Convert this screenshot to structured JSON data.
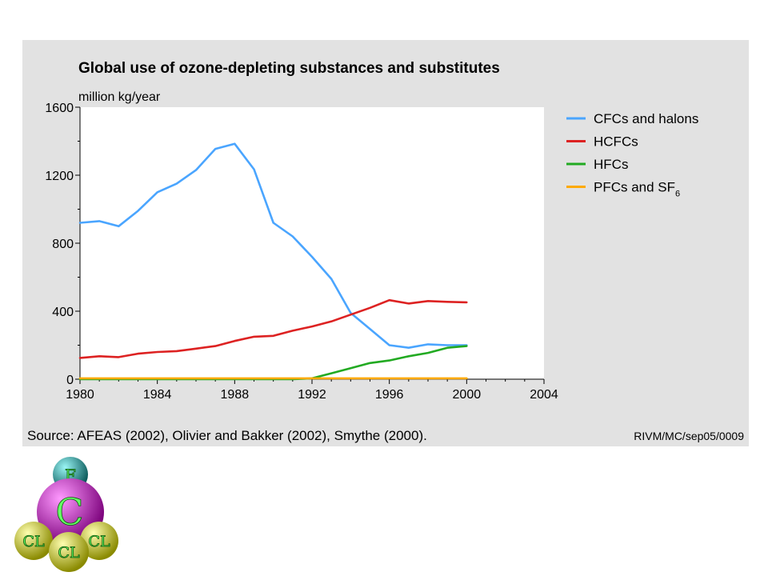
{
  "chart_data": {
    "type": "line",
    "title": "Global use of ozone-depleting substances and substitutes",
    "ylabel": "million kg/year",
    "xlabel": "",
    "xlim": [
      1980,
      2004
    ],
    "ylim": [
      0,
      1600
    ],
    "x_ticks": [
      1980,
      1984,
      1988,
      1992,
      1996,
      2000,
      2004
    ],
    "y_ticks": [
      0,
      400,
      800,
      1200,
      1600
    ],
    "legend_position": "right",
    "grid": false,
    "series": [
      {
        "name": "CFCs and halons",
        "color": "#4aa5ff",
        "x": [
          1980,
          1981,
          1982,
          1983,
          1984,
          1985,
          1986,
          1987,
          1988,
          1989,
          1990,
          1991,
          1992,
          1993,
          1994,
          1995,
          1996,
          1997,
          1998,
          1999,
          2000
        ],
        "y": [
          920,
          930,
          900,
          990,
          1100,
          1150,
          1230,
          1355,
          1385,
          1235,
          920,
          840,
          720,
          590,
          390,
          295,
          200,
          185,
          205,
          200,
          200
        ]
      },
      {
        "name": "HCFCs",
        "color": "#dd2222",
        "x": [
          1980,
          1981,
          1982,
          1983,
          1984,
          1985,
          1986,
          1987,
          1988,
          1989,
          1990,
          1991,
          1992,
          1993,
          1994,
          1995,
          1996,
          1997,
          1998,
          1999,
          2000
        ],
        "y": [
          125,
          135,
          130,
          150,
          160,
          165,
          180,
          195,
          225,
          250,
          255,
          285,
          310,
          340,
          380,
          420,
          465,
          445,
          460,
          455,
          452
        ]
      },
      {
        "name": "HFCs",
        "color": "#22aa22",
        "x": [
          1980,
          1984,
          1988,
          1991,
          1992,
          1993,
          1994,
          1995,
          1996,
          1997,
          1998,
          1999,
          2000
        ],
        "y": [
          0,
          0,
          0,
          0,
          5,
          35,
          65,
          95,
          110,
          135,
          155,
          185,
          195
        ]
      },
      {
        "name": "PFCs and SF",
        "name_subscript": "6",
        "color": "#ffaa00",
        "x": [
          1980,
          1984,
          1988,
          1992,
          1996,
          2000
        ],
        "y": [
          5,
          5,
          5,
          5,
          5,
          5
        ]
      }
    ],
    "source": "Source: AFEAS (2002), Olivier and Bakker (2002), Smythe (2000).",
    "credit": "RIVM/MC/sep05/0009"
  },
  "molecule": {
    "atoms": [
      {
        "symbol": "F",
        "color": "#1a9a9a"
      },
      {
        "symbol": "C",
        "color": "#cc22cc"
      },
      {
        "symbol": "CL",
        "color": "#e8e820"
      },
      {
        "symbol": "CL",
        "color": "#e8e820"
      },
      {
        "symbol": "CL",
        "color": "#e8e820"
      }
    ]
  }
}
